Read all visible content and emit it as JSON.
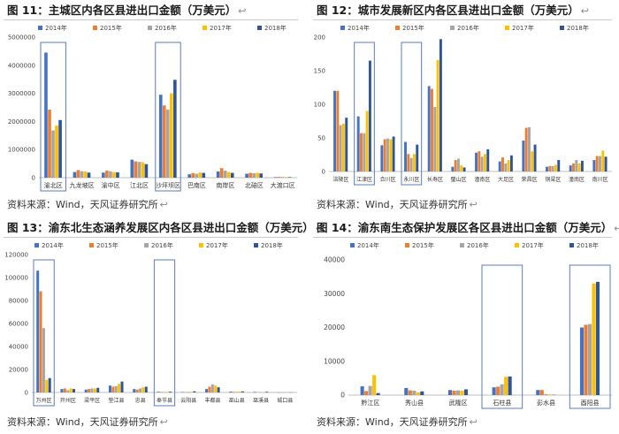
{
  "source_note": "资料来源：Wind，天风证券研究所",
  "return_mark": "↩",
  "colors": [
    "#4472C4",
    "#ED7D31",
    "#A5A5A5",
    "#FFC000",
    "#2F5597"
  ],
  "highlight_color": "#5B7BBF",
  "chart_data": [
    {
      "id": "fig11",
      "type": "bar",
      "title": "图 11：主城区内各区县进出口金额（万美元）",
      "series_names": [
        "2014年",
        "2015年",
        "2016年",
        "2017年",
        "2018年"
      ],
      "ylim": [
        0,
        5000000
      ],
      "yticks": [
        0,
        1000000,
        2000000,
        3000000,
        4000000,
        5000000
      ],
      "highlight": [
        "渝北区",
        "沙坪坝区"
      ],
      "categories": [
        "渝北区",
        "九龙坡区",
        "渝中区",
        "江北区",
        "沙坪坝区",
        "巴南区",
        "南岸区",
        "北碚区",
        "大渡口区"
      ],
      "values": [
        [
          4450000,
          2420000,
          1680000,
          1850000,
          2050000
        ],
        [
          200000,
          270000,
          230000,
          220000,
          180000
        ],
        [
          180000,
          250000,
          230000,
          200000,
          190000
        ],
        [
          640000,
          580000,
          560000,
          550000,
          480000
        ],
        [
          2950000,
          2570000,
          2420000,
          3000000,
          3480000
        ],
        [
          120000,
          160000,
          140000,
          180000,
          170000
        ],
        [
          220000,
          340000,
          250000,
          200000,
          170000
        ],
        [
          140000,
          170000,
          160000,
          170000,
          150000
        ],
        [
          20000,
          30000,
          25000,
          25000,
          20000
        ]
      ]
    },
    {
      "id": "fig12",
      "type": "bar",
      "title": "图 12：城市发展新区内各区县进出口金额（万美元）",
      "series_names": [
        "2014年",
        "2015年",
        "2016年",
        "2017年",
        "2018年"
      ],
      "ylim": [
        0,
        200
      ],
      "yticks": [
        0,
        50,
        100,
        150,
        200
      ],
      "highlight": [
        "江津区",
        "永川区"
      ],
      "categories": [
        "涪陵区",
        "江津区",
        "合川区",
        "永川区",
        "长寿区",
        "璧山区",
        "潼南区",
        "大足区",
        "荣昌区",
        "铜梁区",
        "潼南区",
        "南川区"
      ],
      "values": [
        [
          120,
          120,
          69,
          71,
          80
        ],
        [
          82,
          57,
          57,
          90,
          165
        ],
        [
          39,
          48,
          49,
          48,
          52
        ],
        [
          44,
          26,
          20,
          26,
          40
        ],
        [
          127,
          123,
          96,
          166,
          197
        ],
        [
          7,
          17,
          19,
          9,
          6
        ],
        [
          28,
          30,
          22,
          26,
          33
        ],
        [
          15,
          21,
          12,
          17,
          24
        ],
        [
          46,
          65,
          66,
          30,
          40
        ],
        [
          7,
          8,
          8,
          10,
          17
        ],
        [
          9,
          12,
          17,
          12,
          16
        ],
        [
          17,
          23,
          23,
          31,
          22
        ]
      ]
    },
    {
      "id": "fig13",
      "type": "bar",
      "title": "图 13：渝东北生态涵养发展区内各区县进出口金额（万美元）",
      "series_names": [
        "2014年",
        "2015年",
        "2016年",
        "2017年",
        "2018年"
      ],
      "ylim": [
        0,
        120000
      ],
      "yticks": [
        0,
        20000,
        40000,
        60000,
        80000,
        100000,
        120000
      ],
      "highlight": [
        "万州区",
        "奉节县"
      ],
      "categories": [
        "万州区",
        "开州区",
        "梁平区",
        "垫江县",
        "忠县",
        "奉节县",
        "云阳县",
        "丰都县",
        "巫山县",
        "巫溪县",
        "城口县"
      ],
      "values": [
        [
          106000,
          88000,
          56000,
          11000,
          12500
        ],
        [
          3000,
          3500,
          2000,
          3500,
          3000
        ],
        [
          2500,
          3000,
          3500,
          3500,
          4000
        ],
        [
          6000,
          5000,
          5500,
          7500,
          9500
        ],
        [
          3000,
          2500,
          3500,
          4500,
          5000
        ],
        [
          600,
          500,
          400,
          500,
          700
        ],
        [
          400,
          300,
          500,
          600,
          1000
        ],
        [
          3000,
          5000,
          7000,
          6000,
          4500
        ],
        [
          800,
          600,
          500,
          800,
          900
        ],
        [
          500,
          300,
          200,
          300,
          600
        ],
        [
          100,
          200,
          300,
          200,
          100
        ]
      ]
    },
    {
      "id": "fig14",
      "type": "bar",
      "title": "图 14：渝东南生态保护发展区各区县进出口金额（万美元）",
      "series_names": [
        "2014年",
        "2015年",
        "2016年",
        "2017年",
        "2018年"
      ],
      "ylim": [
        0,
        40000
      ],
      "yticks": [
        0,
        10000,
        20000,
        30000,
        40000
      ],
      "highlight": [
        "石柱县",
        "酉阳县"
      ],
      "categories": [
        "黔江区",
        "秀山县",
        "武隆区",
        "石柱县",
        "彭水县",
        "酉阳县"
      ],
      "values": [
        [
          2600,
          1200,
          2700,
          5900,
          600
        ],
        [
          2100,
          1400,
          1300,
          800,
          1100
        ],
        [
          1500,
          1300,
          1400,
          1300,
          1700
        ],
        [
          2300,
          2500,
          3200,
          5400,
          5500
        ],
        [
          1500,
          1500,
          300,
          200,
          100
        ],
        [
          20000,
          20800,
          21000,
          33000,
          33500
        ]
      ]
    }
  ]
}
